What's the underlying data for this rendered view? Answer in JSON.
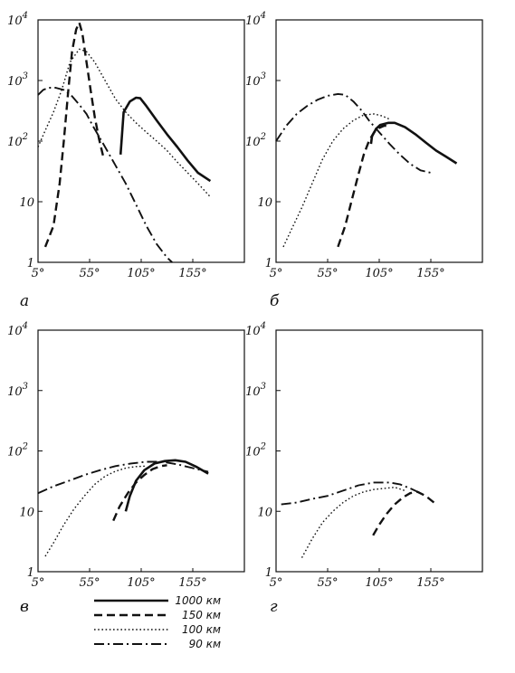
{
  "chart_data": [
    {
      "type": "line",
      "panel_label": "а",
      "y_scale": "log",
      "ylim": [
        1,
        10000
      ],
      "xlim": [
        5,
        205
      ],
      "x_ticks": [
        "5°",
        "55°",
        "105°",
        "155°"
      ],
      "y_ticks": [
        {
          "value": 1,
          "base": "1",
          "exp": ""
        },
        {
          "value": 10,
          "base": "10",
          "exp": ""
        },
        {
          "value": 100,
          "base": "10",
          "exp": "2"
        },
        {
          "value": 1000,
          "base": "10",
          "exp": "3"
        },
        {
          "value": 10000,
          "base": "10",
          "exp": "4"
        }
      ],
      "series": [
        {
          "name": "1000 км",
          "style": "solid",
          "points": [
            [
              85,
              60
            ],
            [
              86,
              100
            ],
            [
              88,
              300
            ],
            [
              94,
              450
            ],
            [
              100,
              520
            ],
            [
              104,
              510
            ],
            [
              110,
              380
            ],
            [
              120,
              220
            ],
            [
              130,
              130
            ],
            [
              140,
              80
            ],
            [
              150,
              48
            ],
            [
              160,
              30
            ],
            [
              172,
              22
            ]
          ]
        },
        {
          "name": "150 км",
          "style": "dashed",
          "points": [
            [
              12,
              1.8
            ],
            [
              20,
              4
            ],
            [
              26,
              20
            ],
            [
              30,
              100
            ],
            [
              34,
              600
            ],
            [
              38,
              3000
            ],
            [
              42,
              7000
            ],
            [
              45,
              9000
            ],
            [
              48,
              6000
            ],
            [
              52,
              2000
            ],
            [
              56,
              700
            ],
            [
              60,
              250
            ],
            [
              64,
              110
            ],
            [
              68,
              58
            ]
          ]
        },
        {
          "name": "100 км",
          "style": "dotted",
          "points": [
            [
              5,
              80
            ],
            [
              12,
              150
            ],
            [
              20,
              300
            ],
            [
              28,
              700
            ],
            [
              36,
              2000
            ],
            [
              45,
              3300
            ],
            [
              52,
              3000
            ],
            [
              60,
              2000
            ],
            [
              70,
              1000
            ],
            [
              80,
              500
            ],
            [
              90,
              300
            ],
            [
              100,
              200
            ],
            [
              110,
              140
            ],
            [
              120,
              100
            ],
            [
              130,
              70
            ],
            [
              140,
              45
            ],
            [
              150,
              30
            ],
            [
              160,
              20
            ],
            [
              172,
              12
            ]
          ]
        },
        {
          "name": "90 км",
          "style": "dashdot",
          "points": [
            [
              5,
              580
            ],
            [
              10,
              700
            ],
            [
              15,
              760
            ],
            [
              22,
              760
            ],
            [
              30,
              700
            ],
            [
              38,
              550
            ],
            [
              45,
              400
            ],
            [
              52,
              280
            ],
            [
              58,
              180
            ],
            [
              64,
              120
            ],
            [
              70,
              80
            ],
            [
              80,
              40
            ],
            [
              90,
              20
            ],
            [
              100,
              9
            ],
            [
              110,
              4
            ],
            [
              120,
              2
            ],
            [
              130,
              1.2
            ],
            [
              135,
              1
            ]
          ]
        }
      ]
    },
    {
      "type": "line",
      "panel_label": "б",
      "y_scale": "log",
      "ylim": [
        1,
        10000
      ],
      "xlim": [
        5,
        205
      ],
      "x_ticks": [
        "5°",
        "55°",
        "105°",
        "155°"
      ],
      "y_ticks": [
        {
          "value": 1,
          "base": "1",
          "exp": ""
        },
        {
          "value": 10,
          "base": "10",
          "exp": ""
        },
        {
          "value": 100,
          "base": "10",
          "exp": "2"
        },
        {
          "value": 1000,
          "base": "10",
          "exp": "3"
        },
        {
          "value": 10000,
          "base": "10",
          "exp": "4"
        }
      ],
      "series": [
        {
          "name": "1000 км",
          "style": "solid",
          "points": [
            [
              97,
              90
            ],
            [
              98,
              120
            ],
            [
              102,
              160
            ],
            [
              106,
              185
            ],
            [
              114,
              200
            ],
            [
              120,
              200
            ],
            [
              130,
              170
            ],
            [
              140,
              130
            ],
            [
              150,
              95
            ],
            [
              160,
              70
            ],
            [
              170,
              55
            ],
            [
              180,
              43
            ]
          ]
        },
        {
          "name": "150 км",
          "style": "dashed",
          "points": [
            [
              65,
              1.8
            ],
            [
              72,
              4
            ],
            [
              78,
              10
            ],
            [
              84,
              25
            ],
            [
              90,
              60
            ],
            [
              95,
              100
            ],
            [
              100,
              140
            ],
            [
              105,
              165
            ],
            [
              110,
              180
            ],
            [
              115,
              175
            ]
          ]
        },
        {
          "name": "100 км",
          "style": "dotted",
          "points": [
            [
              12,
              1.8
            ],
            [
              20,
              3.5
            ],
            [
              30,
              8
            ],
            [
              40,
              20
            ],
            [
              50,
              50
            ],
            [
              60,
              100
            ],
            [
              70,
              160
            ],
            [
              80,
              220
            ],
            [
              90,
              270
            ],
            [
              100,
              280
            ],
            [
              108,
              260
            ],
            [
              115,
              230
            ]
          ]
        },
        {
          "name": "90 км",
          "style": "dashdot",
          "points": [
            [
              5,
              100
            ],
            [
              15,
              180
            ],
            [
              25,
              280
            ],
            [
              35,
              380
            ],
            [
              45,
              480
            ],
            [
              55,
              560
            ],
            [
              65,
              600
            ],
            [
              72,
              580
            ],
            [
              80,
              450
            ],
            [
              88,
              320
            ],
            [
              95,
              220
            ],
            [
              105,
              140
            ],
            [
              115,
              90
            ],
            [
              125,
              60
            ],
            [
              135,
              42
            ],
            [
              145,
              33
            ],
            [
              155,
              30
            ]
          ]
        }
      ]
    },
    {
      "type": "line",
      "panel_label": "в",
      "y_scale": "log",
      "ylim": [
        1,
        10000
      ],
      "xlim": [
        5,
        205
      ],
      "x_ticks": [
        "5°",
        "55°",
        "105°",
        "155°"
      ],
      "y_ticks": [
        {
          "value": 1,
          "base": "1",
          "exp": ""
        },
        {
          "value": 10,
          "base": "10",
          "exp": ""
        },
        {
          "value": 100,
          "base": "10",
          "exp": "2"
        },
        {
          "value": 1000,
          "base": "10",
          "exp": "3"
        },
        {
          "value": 10000,
          "base": "10",
          "exp": "4"
        }
      ],
      "series": [
        {
          "name": "1000 км",
          "style": "solid",
          "points": [
            [
              90,
              10
            ],
            [
              94,
              18
            ],
            [
              100,
              32
            ],
            [
              108,
              48
            ],
            [
              118,
              62
            ],
            [
              128,
              68
            ],
            [
              138,
              70
            ],
            [
              148,
              66
            ],
            [
              158,
              55
            ],
            [
              170,
              42
            ]
          ]
        },
        {
          "name": "150 км",
          "style": "dashed",
          "points": [
            [
              78,
              7
            ],
            [
              84,
              12
            ],
            [
              92,
              20
            ],
            [
              100,
              30
            ],
            [
              108,
              40
            ],
            [
              116,
              50
            ],
            [
              124,
              56
            ],
            [
              130,
              58
            ]
          ]
        },
        {
          "name": "100 км",
          "style": "dotted",
          "points": [
            [
              12,
              1.8
            ],
            [
              20,
              3
            ],
            [
              30,
              6
            ],
            [
              40,
              11
            ],
            [
              50,
              18
            ],
            [
              60,
              28
            ],
            [
              70,
              38
            ],
            [
              80,
              46
            ],
            [
              90,
              52
            ],
            [
              100,
              55
            ],
            [
              110,
              56
            ]
          ]
        },
        {
          "name": "90 км",
          "style": "dashdot",
          "points": [
            [
              5,
              20
            ],
            [
              20,
              26
            ],
            [
              35,
              32
            ],
            [
              50,
              40
            ],
            [
              65,
              48
            ],
            [
              80,
              56
            ],
            [
              95,
              62
            ],
            [
              110,
              66
            ],
            [
              125,
              66
            ],
            [
              140,
              60
            ],
            [
              155,
              52
            ],
            [
              170,
              45
            ]
          ]
        }
      ]
    },
    {
      "type": "line",
      "panel_label": "г",
      "y_scale": "log",
      "ylim": [
        1,
        10000
      ],
      "xlim": [
        5,
        205
      ],
      "x_ticks": [
        "5°",
        "55°",
        "105°",
        "155°"
      ],
      "y_ticks": [
        {
          "value": 1,
          "base": "1",
          "exp": ""
        },
        {
          "value": 10,
          "base": "10",
          "exp": ""
        },
        {
          "value": 100,
          "base": "10",
          "exp": "2"
        },
        {
          "value": 1000,
          "base": "10",
          "exp": "3"
        },
        {
          "value": 10000,
          "base": "10",
          "exp": "4"
        }
      ],
      "series": [
        {
          "name": "150 км",
          "style": "dashed",
          "points": [
            [
              99,
              4
            ],
            [
              105,
              6
            ],
            [
              112,
              9
            ],
            [
              120,
              13
            ],
            [
              128,
              17
            ],
            [
              135,
              20
            ],
            [
              142,
              21
            ],
            [
              150,
              18
            ],
            [
              158,
              14
            ]
          ]
        },
        {
          "name": "100 км",
          "style": "dotted",
          "points": [
            [
              30,
              1.7
            ],
            [
              40,
              3.5
            ],
            [
              50,
              6.5
            ],
            [
              60,
              10
            ],
            [
              70,
              14
            ],
            [
              80,
              18
            ],
            [
              90,
              21
            ],
            [
              100,
              23
            ],
            [
              110,
              24
            ],
            [
              120,
              25
            ],
            [
              130,
              22
            ]
          ]
        },
        {
          "name": "90 км",
          "style": "dashdot",
          "points": [
            [
              10,
              13
            ],
            [
              25,
              14
            ],
            [
              40,
              16
            ],
            [
              55,
              18
            ],
            [
              70,
              22
            ],
            [
              85,
              27
            ],
            [
              100,
              30
            ],
            [
              115,
              30
            ],
            [
              125,
              28
            ],
            [
              135,
              24
            ],
            [
              145,
              20
            ]
          ]
        }
      ]
    }
  ],
  "legend": [
    {
      "label": "1000 км",
      "style": "solid"
    },
    {
      "label": "150 км",
      "style": "dashed"
    },
    {
      "label": "100 км",
      "style": "dotted"
    },
    {
      "label": "90 км",
      "style": "dashdot"
    }
  ]
}
